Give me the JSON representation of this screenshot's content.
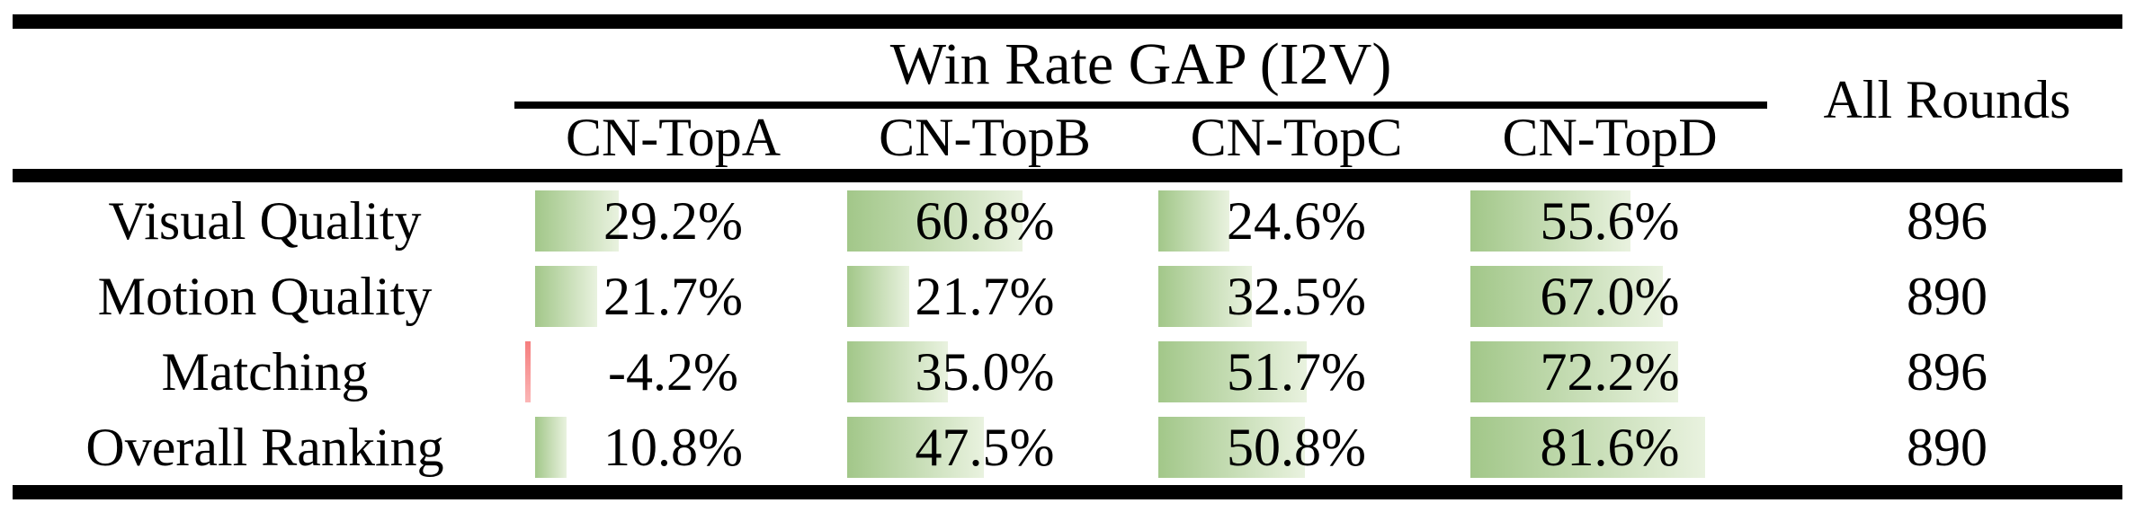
{
  "header": {
    "group_title": "Win Rate GAP (I2V)",
    "columns": [
      "CN-TopA",
      "CN-TopB",
      "CN-TopC",
      "CN-TopD"
    ],
    "all_rounds_label": "All Rounds"
  },
  "table": {
    "rows": [
      {
        "label": "Visual Quality",
        "values": [
          29.2,
          60.8,
          24.6,
          55.6
        ],
        "display": [
          "29.2%",
          "60.8%",
          "24.6%",
          "55.6%"
        ],
        "all_rounds": "896"
      },
      {
        "label": "Motion Quality",
        "values": [
          21.7,
          21.7,
          32.5,
          67.0
        ],
        "display": [
          "21.7%",
          "21.7%",
          "32.5%",
          "67.0%"
        ],
        "all_rounds": "890"
      },
      {
        "label": "Matching",
        "values": [
          -4.2,
          35.0,
          51.7,
          72.2
        ],
        "display": [
          "-4.2%",
          "35.0%",
          "51.7%",
          "72.2%"
        ],
        "all_rounds": "896"
      },
      {
        "label": "Overall Ranking",
        "values": [
          10.8,
          47.5,
          50.8,
          81.6
        ],
        "display": [
          "10.8%",
          "47.5%",
          "50.8%",
          "81.6%"
        ],
        "all_rounds": "890"
      }
    ]
  },
  "colors": {
    "bar_green_start": "#a2c789",
    "bar_green_end": "#e9f2df",
    "bar_negative": "#f57e7e",
    "rule_black": "#000000"
  },
  "chart_data": {
    "type": "table",
    "title": "Win Rate GAP (I2V)",
    "categories": [
      "Visual Quality",
      "Motion Quality",
      "Matching",
      "Overall Ranking"
    ],
    "series": [
      {
        "name": "CN-TopA",
        "values": [
          29.2,
          21.7,
          -4.2,
          10.8
        ]
      },
      {
        "name": "CN-TopB",
        "values": [
          60.8,
          21.7,
          35.0,
          47.5
        ]
      },
      {
        "name": "CN-TopC",
        "values": [
          24.6,
          32.5,
          51.7,
          50.8
        ]
      },
      {
        "name": "CN-TopD",
        "values": [
          55.6,
          67.0,
          72.2,
          81.6
        ]
      }
    ],
    "all_rounds": [
      896,
      890,
      896,
      890
    ],
    "value_unit": "%",
    "bar_style": "in-cell gradient data bars, green positive, red negative"
  }
}
